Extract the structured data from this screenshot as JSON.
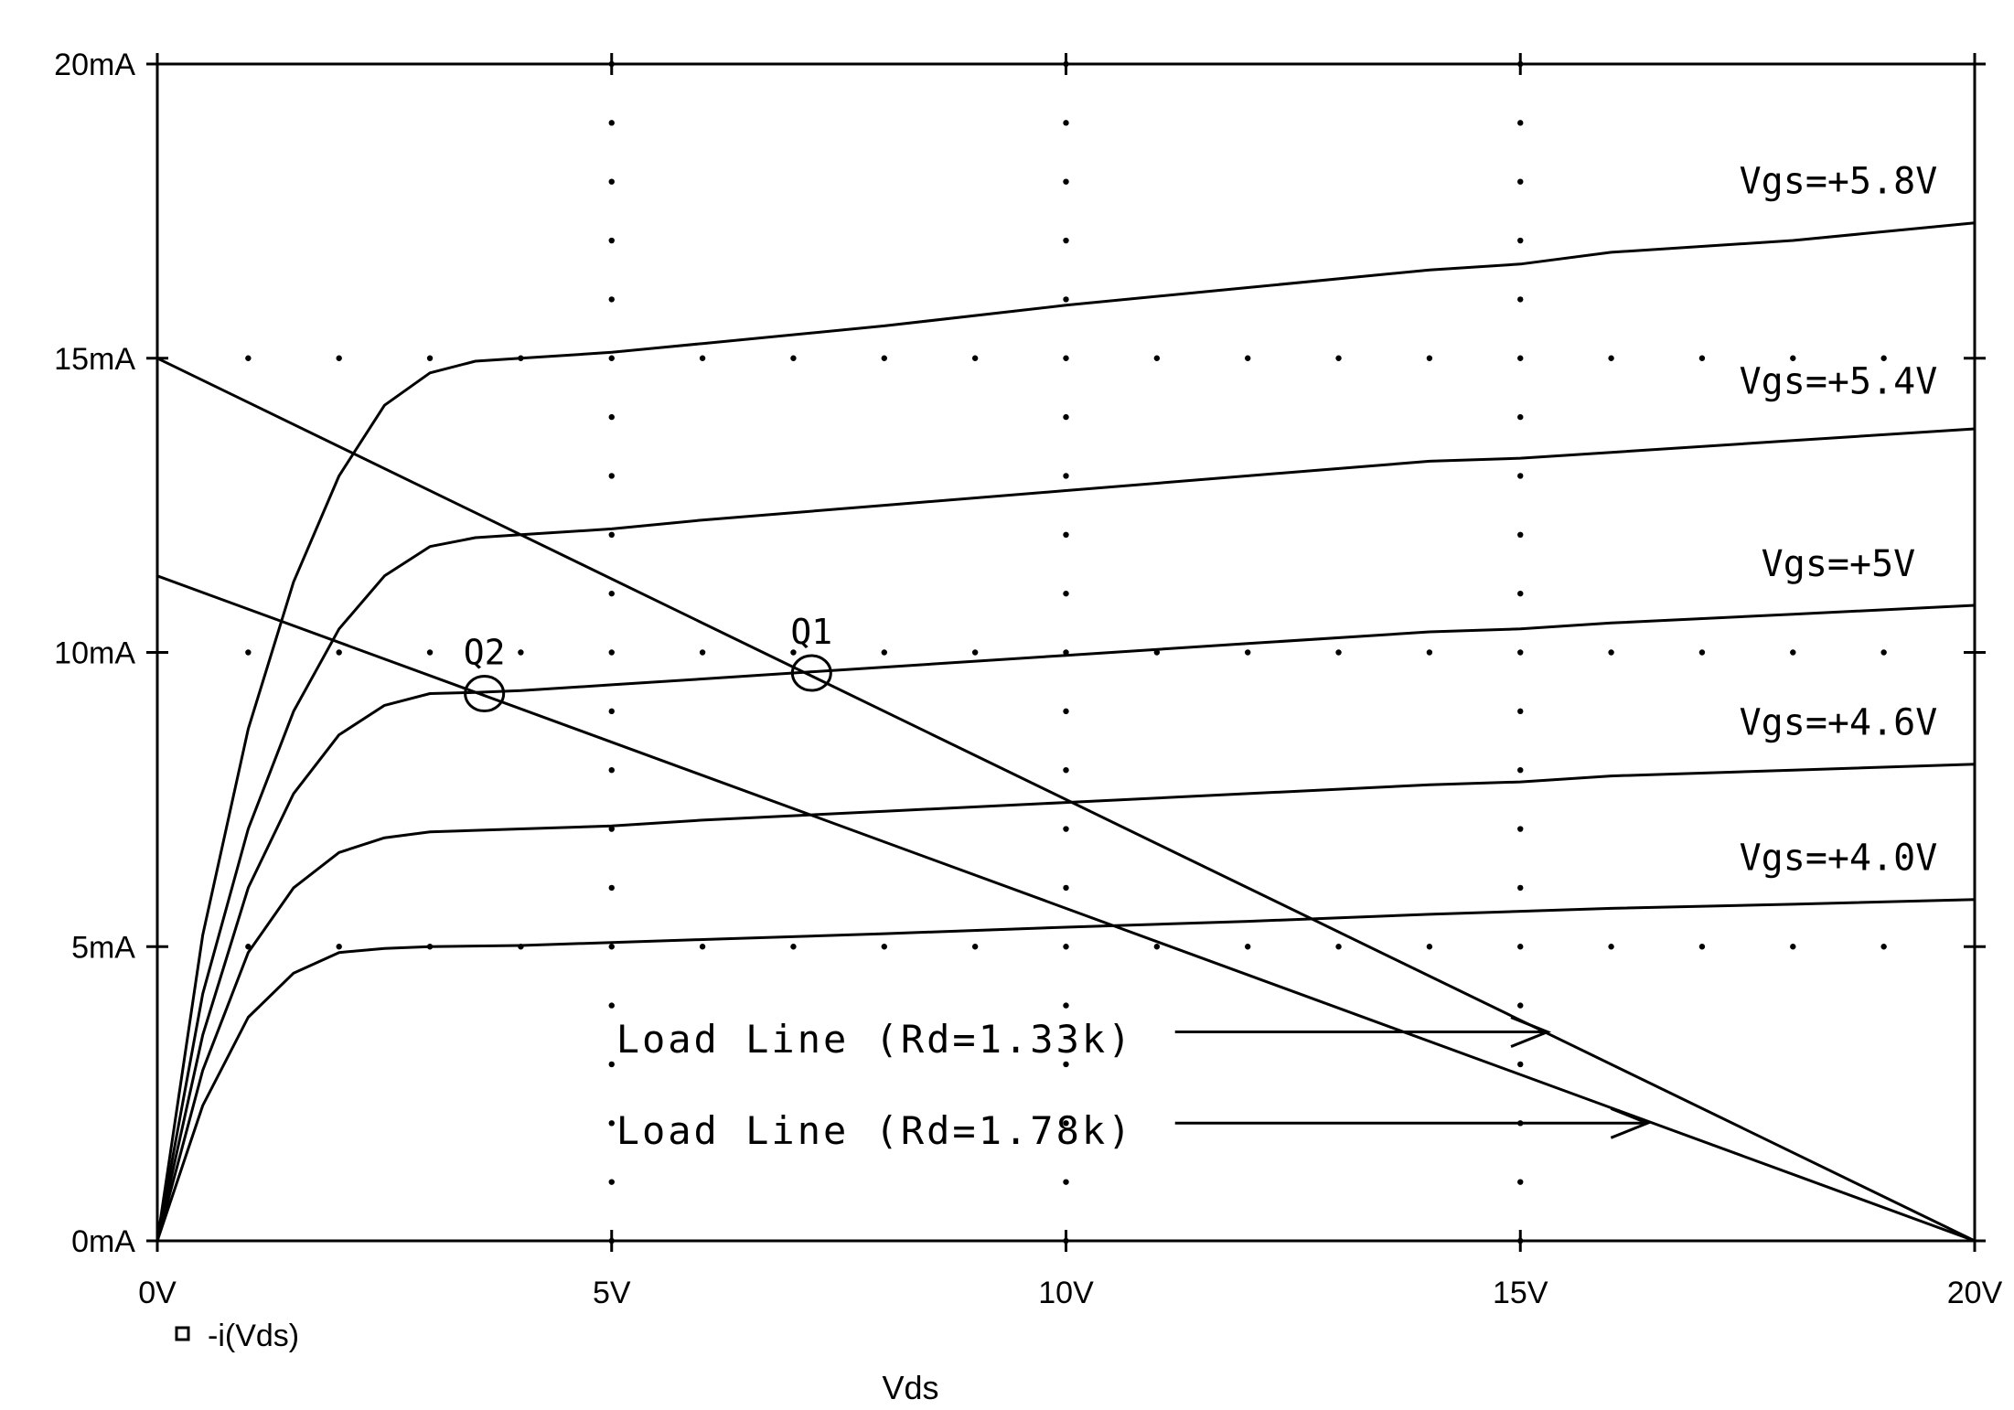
{
  "chart_data": {
    "type": "line",
    "title": "",
    "xlabel": "Vds",
    "ylabel": "",
    "xlim": [
      0,
      20
    ],
    "ylim": [
      0,
      20
    ],
    "x_unit": "V",
    "y_unit": "mA",
    "x_ticks": [
      0,
      5,
      10,
      15,
      20
    ],
    "x_tick_labels": [
      "0V",
      "5V",
      "10V",
      "15V",
      "20V"
    ],
    "y_ticks": [
      0,
      5,
      10,
      15,
      20
    ],
    "y_tick_labels": [
      "0mA",
      "5mA",
      "10mA",
      "15mA",
      "20mA"
    ],
    "grid": "dotted",
    "legend": {
      "marker": "square",
      "label": "-i(Vds)",
      "placement": "bottom-left"
    },
    "series": [
      {
        "name": "Vgs=+5.8V",
        "label": "Vgs=+5.8V",
        "kind": "drain-curve",
        "x": [
          0,
          0.5,
          1,
          1.5,
          2,
          2.5,
          3,
          3.5,
          4,
          5,
          6,
          8,
          10,
          12,
          14,
          15,
          16,
          18,
          20
        ],
        "y": [
          0,
          5.2,
          8.7,
          11.2,
          13.0,
          14.2,
          14.75,
          14.95,
          15.0,
          15.1,
          15.25,
          15.55,
          15.9,
          16.2,
          16.5,
          16.6,
          16.8,
          17.0,
          17.3
        ]
      },
      {
        "name": "Vgs=+5.4V",
        "label": "Vgs=+5.4V",
        "kind": "drain-curve",
        "x": [
          0,
          0.5,
          1,
          1.5,
          2,
          2.5,
          3,
          3.5,
          4,
          5,
          6,
          8,
          10,
          12,
          14,
          15,
          16,
          18,
          20
        ],
        "y": [
          0,
          4.2,
          7.0,
          9.0,
          10.4,
          11.3,
          11.8,
          11.95,
          12.0,
          12.1,
          12.25,
          12.5,
          12.75,
          13.0,
          13.25,
          13.3,
          13.4,
          13.6,
          13.8
        ]
      },
      {
        "name": "Vgs=+5V",
        "label": "Vgs=+5V",
        "kind": "drain-curve",
        "x": [
          0,
          0.5,
          1,
          1.5,
          2,
          2.5,
          3,
          3.5,
          4,
          5,
          6,
          7,
          8,
          10,
          12,
          14,
          15,
          16,
          18,
          20
        ],
        "y": [
          0,
          3.5,
          6.0,
          7.6,
          8.6,
          9.1,
          9.3,
          9.32,
          9.35,
          9.45,
          9.55,
          9.65,
          9.75,
          9.95,
          10.15,
          10.35,
          10.4,
          10.5,
          10.65,
          10.8
        ]
      },
      {
        "name": "Vgs=+4.6V",
        "label": "Vgs=+4.6V",
        "kind": "drain-curve",
        "x": [
          0,
          0.5,
          1,
          1.5,
          2,
          2.5,
          3,
          4,
          5,
          6,
          8,
          10,
          12,
          14,
          15,
          16,
          18,
          20
        ],
        "y": [
          0,
          2.9,
          4.9,
          6.0,
          6.6,
          6.85,
          6.95,
          7.0,
          7.05,
          7.15,
          7.3,
          7.45,
          7.6,
          7.75,
          7.8,
          7.9,
          8.0,
          8.1
        ]
      },
      {
        "name": "Vgs=+4.0V",
        "label": "Vgs=+4.0V",
        "kind": "drain-curve",
        "x": [
          0,
          0.5,
          1,
          1.5,
          2,
          2.5,
          3,
          4,
          5,
          6,
          8,
          10,
          12,
          14,
          15,
          16,
          18,
          20
        ],
        "y": [
          0,
          2.3,
          3.8,
          4.55,
          4.9,
          4.97,
          5.0,
          5.02,
          5.07,
          5.12,
          5.22,
          5.33,
          5.43,
          5.55,
          5.6,
          5.65,
          5.72,
          5.8
        ]
      },
      {
        "name": "Load Line (Rd=1.33k)",
        "kind": "load-line",
        "x": [
          0,
          20
        ],
        "y": [
          15.0,
          0
        ]
      },
      {
        "name": "Load Line (Rd=1.78k)",
        "kind": "load-line",
        "x": [
          0,
          20
        ],
        "y": [
          11.3,
          0
        ]
      }
    ],
    "curve_labels": [
      {
        "text": "Vgs=+5.8V",
        "x": 18.5,
        "y": 17.8
      },
      {
        "text": "Vgs=+5.4V",
        "x": 18.5,
        "y": 14.4
      },
      {
        "text": "Vgs=+5V",
        "x": 18.5,
        "y": 11.3
      },
      {
        "text": "Vgs=+4.6V",
        "x": 18.5,
        "y": 8.6
      },
      {
        "text": "Vgs=+4.0V",
        "x": 18.5,
        "y": 6.3
      }
    ],
    "operating_points": [
      {
        "label": "Q1",
        "x": 7.2,
        "y": 9.65
      },
      {
        "label": "Q2",
        "x": 3.6,
        "y": 9.3
      }
    ],
    "annotations": [
      {
        "text": "Load Line (Rd=1.33k)",
        "text_x": 5.05,
        "text_y": 3.2,
        "arrow_from": [
          11.2,
          3.55
        ],
        "arrow_to": [
          15.3,
          3.55
        ]
      },
      {
        "text": "Load Line (Rd=1.78k)",
        "text_x": 5.05,
        "text_y": 1.65,
        "arrow_from": [
          11.2,
          2.0
        ],
        "arrow_to": [
          16.4,
          2.0
        ]
      }
    ]
  }
}
